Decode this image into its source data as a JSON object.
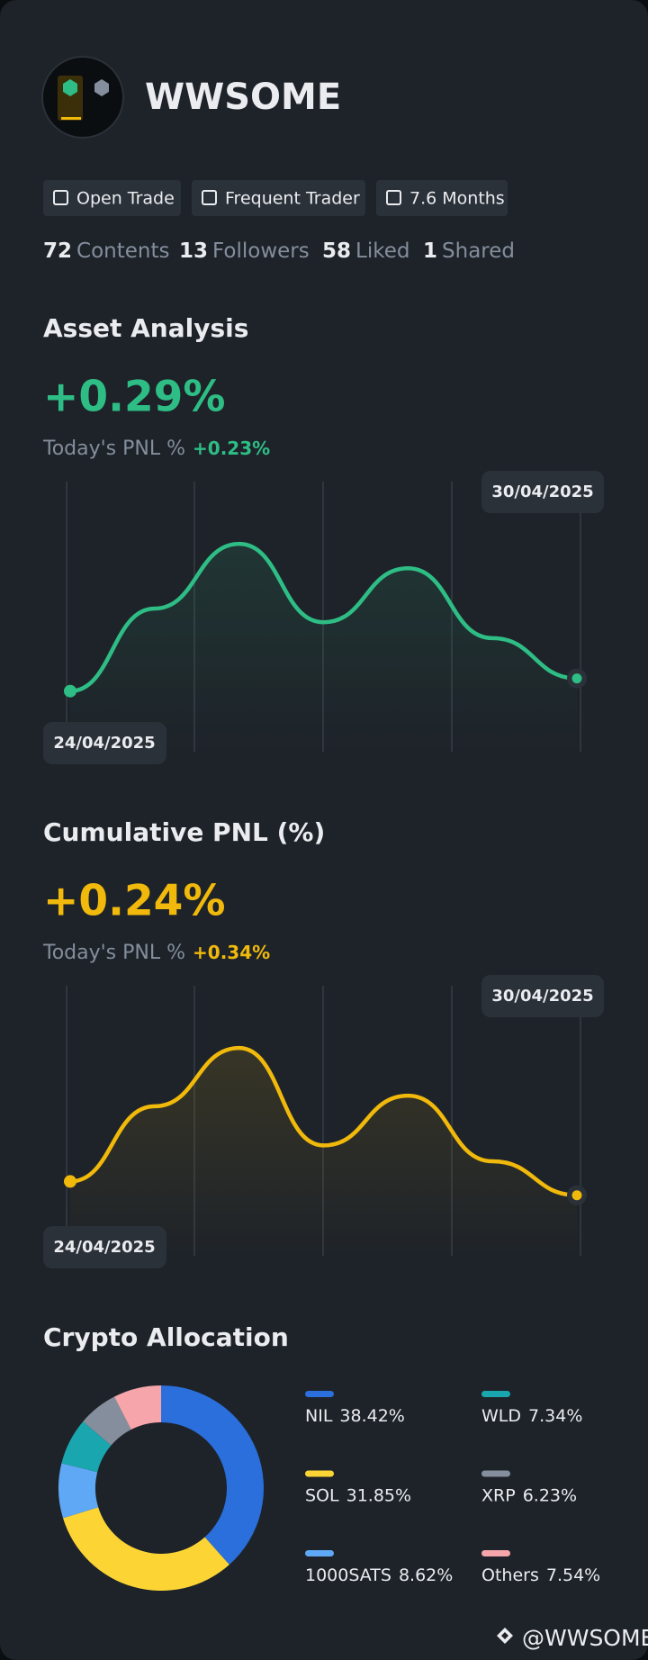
{
  "profile": {
    "name": "WWSOME",
    "badges": [
      "Open Trade",
      "Frequent Trader",
      "7.6 Months"
    ],
    "stats": [
      {
        "value": 72,
        "label": "Contents"
      },
      {
        "value": 13,
        "label": "Followers"
      },
      {
        "value": 58,
        "label": "Liked"
      },
      {
        "value": 1,
        "label": "Shared"
      }
    ]
  },
  "asset_analysis": {
    "title": "Asset Analysis",
    "change": "+0.29%",
    "today_label": "Today's PNL %",
    "today_value": "+0.23%",
    "chart": {
      "type": "line",
      "x_start": "24/04/2025",
      "x_end": "30/04/2025",
      "values": [
        47,
        125,
        186,
        112,
        163,
        97,
        59
      ],
      "color": "#2ebd85"
    }
  },
  "cumulative_pnl": {
    "title": "Cumulative PNL (%)",
    "change": "+0.24%",
    "today_label": "Today's PNL %",
    "today_value": "+0.34%",
    "chart": {
      "type": "line",
      "x_start": "24/04/2025",
      "x_end": "30/04/2025",
      "values": [
        60,
        131,
        186,
        94,
        141,
        79,
        47
      ],
      "color": "#f0b90b"
    }
  },
  "allocation": {
    "title": "Crypto Allocation",
    "chart": {
      "type": "donut",
      "categories": [
        "NIL",
        "SOL",
        "1000SATS",
        "WLD",
        "XRP",
        "Others"
      ],
      "values": [
        38.42,
        31.85,
        8.62,
        7.34,
        6.23,
        7.54
      ],
      "value_labels": [
        "38.42%",
        "31.85%",
        "8.62%",
        "7.34%",
        "6.23%",
        "7.54%"
      ],
      "colors": [
        "#2a6fdb",
        "#fcd535",
        "#5fa8f5",
        "#1aa6ae",
        "#848e9c",
        "#f6a5ab"
      ]
    }
  },
  "footer": {
    "handle": "@WWSOME"
  }
}
